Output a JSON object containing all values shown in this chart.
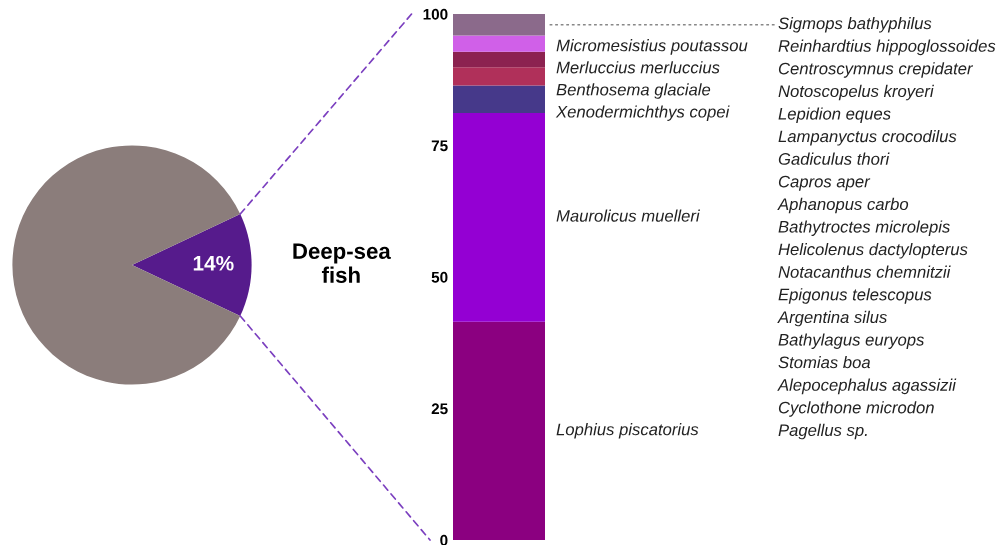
{
  "chart_data": [
    {
      "type": "pie",
      "categories": [
        "Deep-sea fish",
        null
      ],
      "values": [
        14,
        86
      ],
      "colors": [
        "#561b8c",
        "#8b7d7b"
      ],
      "value_labels": [
        "14%",
        null
      ]
    },
    {
      "type": "bar",
      "stacked": true,
      "categories": [
        null
      ],
      "ylim": [
        0,
        100
      ],
      "yticks": [
        0,
        25,
        50,
        75,
        100
      ],
      "grid": false,
      "series": [
        {
          "name": "Lophius piscatorius",
          "color": "#8b0080",
          "values": [
            41.5
          ]
        },
        {
          "name": "Maurolicus muelleri",
          "color": "#9400d3",
          "values": [
            39.7
          ]
        },
        {
          "name": "Xenodermichthys copei",
          "color": "#46398a",
          "values": [
            5.2
          ]
        },
        {
          "name": "Benthosema glaciale",
          "color": "#b0305a",
          "values": [
            3.5
          ]
        },
        {
          "name": "Merluccius merluccius",
          "color": "#8c2250",
          "values": [
            2.9
          ]
        },
        {
          "name": "Micromesistius poutassou",
          "color": "#d060e8",
          "values": [
            3.1
          ]
        },
        {
          "color": "#8b6a8b",
          "values": [
            4.1
          ]
        }
      ],
      "annotations": [
        "Sigmops bathyphilus",
        "Reinhardtius hippoglossoides",
        "Centroscymnus crepidater",
        "Notoscopelus kroyeri",
        "Lepidion eques",
        "Lampanyctus crocodilus",
        "Gadiculus thori",
        "Capros aper",
        "Aphanopus carbo",
        "Bathytroctes microlepis",
        "Helicolenus dactylopterus",
        "Notacanthus chemnitzii",
        "Epigonus telescopus",
        "Argentina silus",
        "Bathylagus euryops",
        "Stomias boa",
        "Alepocephalus agassizii",
        "Cyclothone microdon",
        "Pagellus sp."
      ]
    }
  ]
}
